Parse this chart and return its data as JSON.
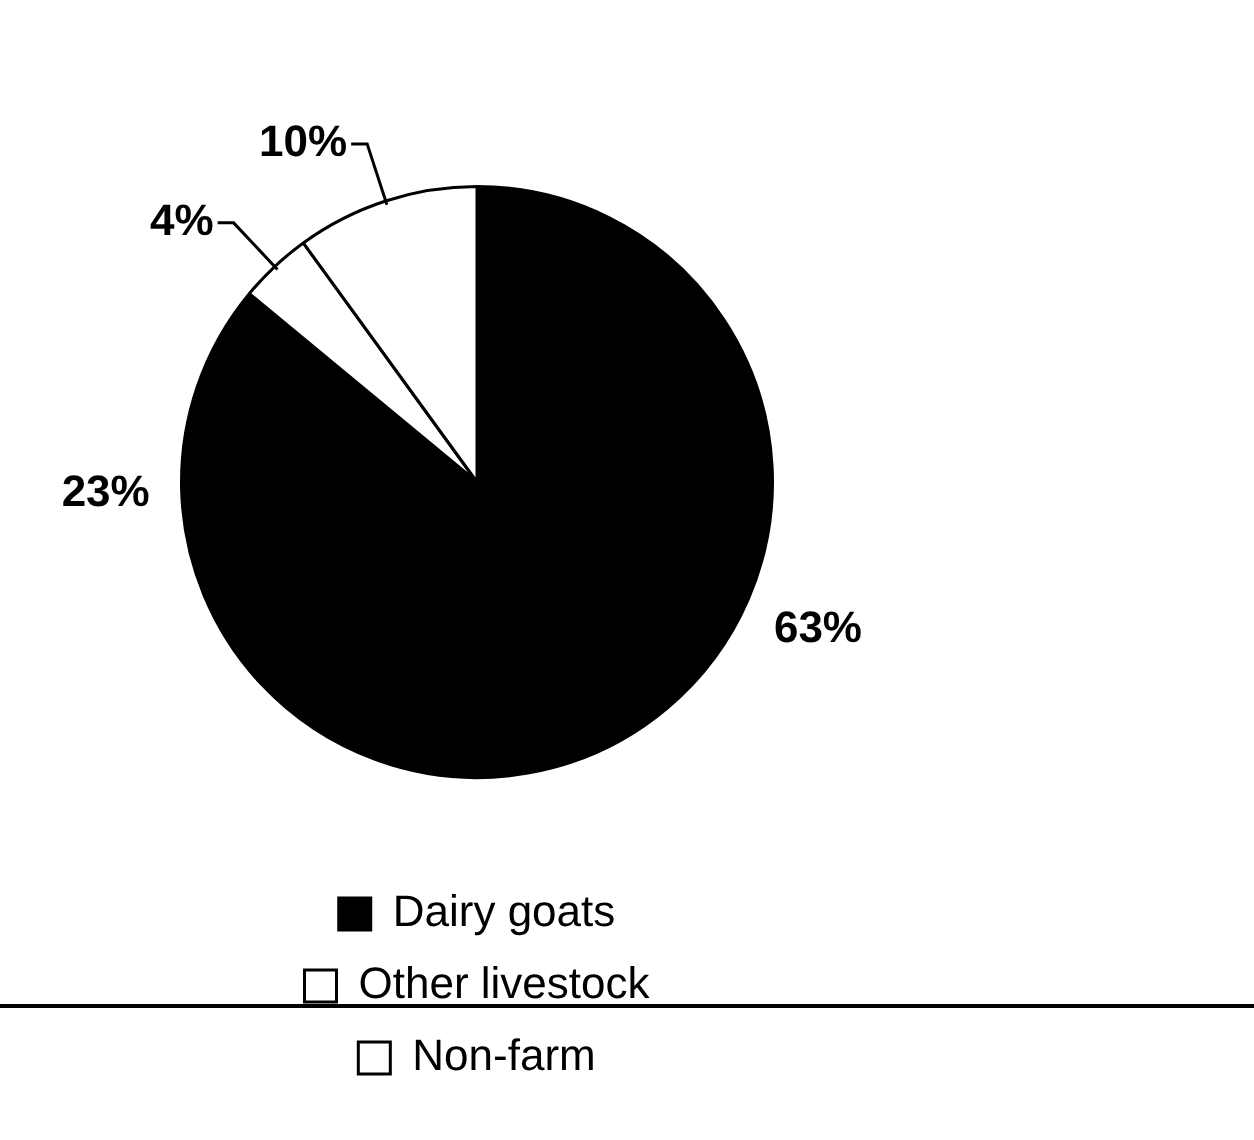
{
  "chart_data": {
    "type": "pie",
    "categories": [
      "Dairy goats",
      null,
      "Other livestock",
      "Non-farm"
    ],
    "values": [
      63,
      23,
      4,
      10
    ],
    "colors": [
      "#000000",
      "#000000",
      "#ffffff",
      "#ffffff"
    ],
    "value_labels": [
      "63%",
      "23%",
      "4%",
      "10%"
    ],
    "legend": "bottom"
  }
}
